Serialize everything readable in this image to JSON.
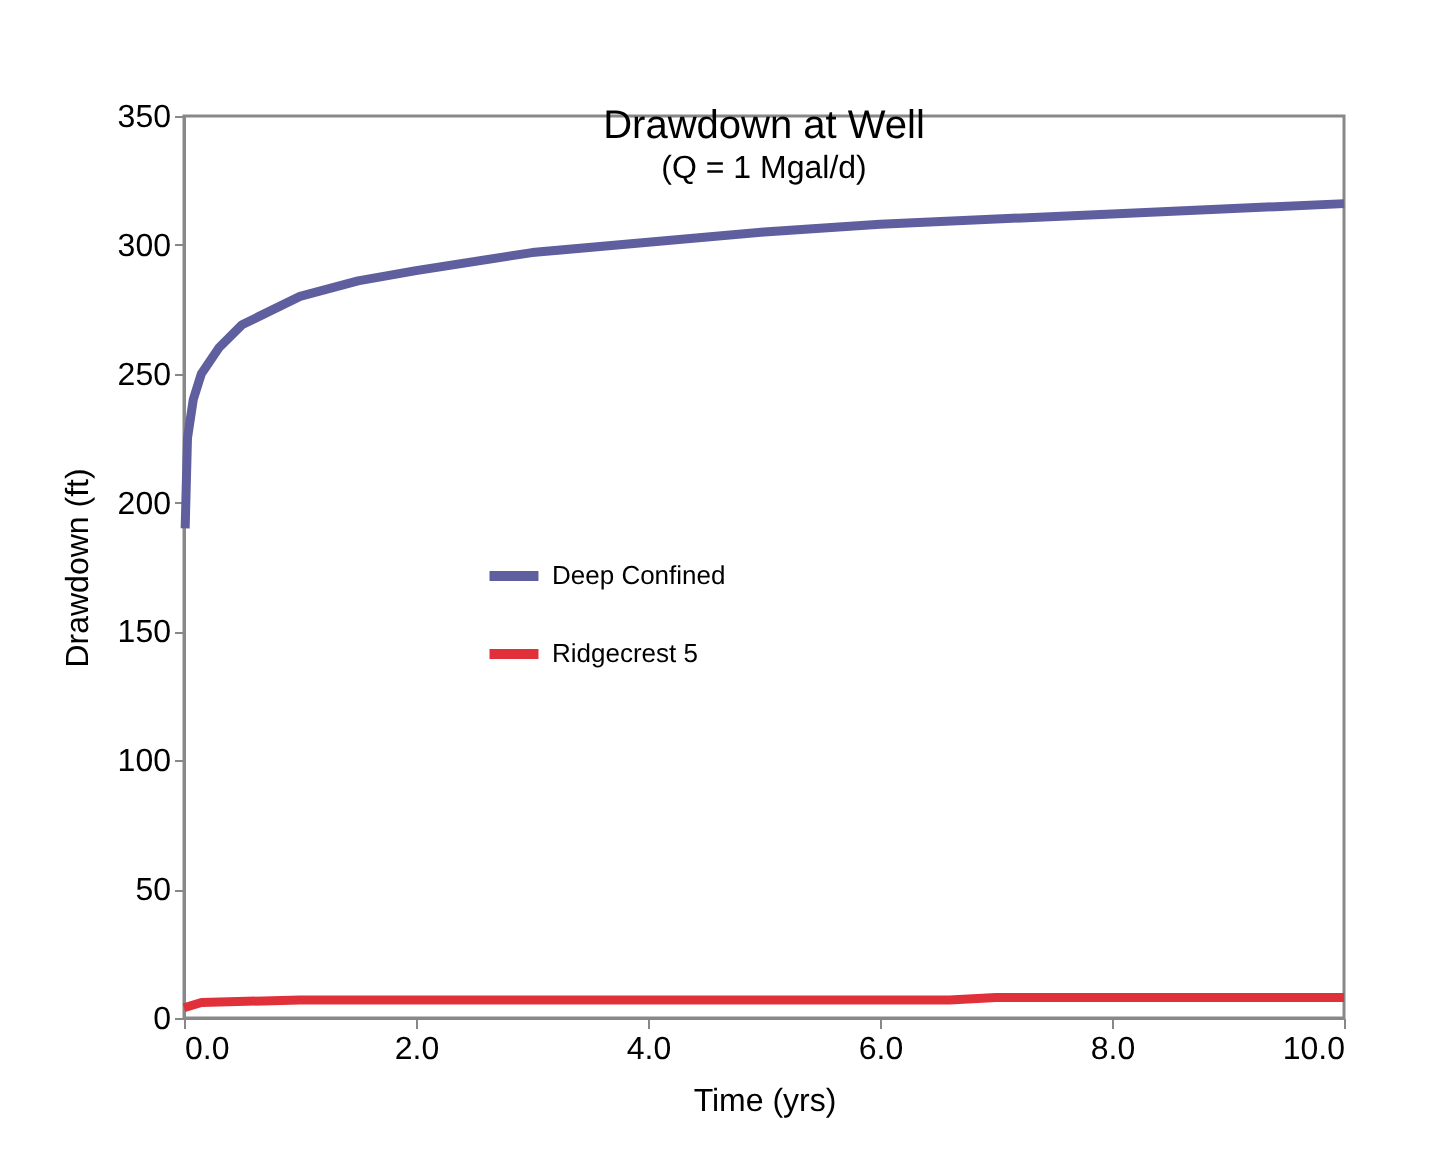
{
  "chart_data": {
    "type": "line",
    "title": "Drawdown at Well",
    "subtitle": "(Q = 1 Mgal/d)",
    "xlabel": "Time (yrs)",
    "ylabel": "Drawdown (ft)",
    "series": [
      {
        "name": "Deep Confined",
        "color": "#5f5f9f",
        "x": [
          0.01,
          0.03,
          0.08,
          0.15,
          0.3,
          0.5,
          1,
          1.5,
          2,
          3,
          4,
          5,
          6,
          7,
          8,
          9,
          10
        ],
        "values": [
          190,
          225,
          240,
          250,
          260,
          269,
          280,
          286,
          290,
          297,
          301,
          305,
          308,
          310,
          312,
          314,
          316
        ]
      },
      {
        "name": "Ridgecrest 5",
        "color": "#e0303a",
        "x": [
          0,
          0.15,
          1,
          6.6,
          7,
          10
        ],
        "values": [
          4,
          6,
          7,
          7,
          8,
          8
        ]
      }
    ],
    "xlim": [
      0,
      10
    ],
    "xticks": [
      {
        "value": 0,
        "label": "0.0"
      },
      {
        "value": 2,
        "label": "2.0"
      },
      {
        "value": 4,
        "label": "4.0"
      },
      {
        "value": 6,
        "label": "6.0"
      },
      {
        "value": 8,
        "label": "8.0"
      },
      {
        "value": 10,
        "label": "10.0"
      }
    ],
    "ylim": [
      0,
      350
    ],
    "yticks": [
      0,
      50,
      100,
      150,
      200,
      250,
      300,
      350
    ],
    "grid": false,
    "legend": "center",
    "marker": "none",
    "line_style": "solid"
  }
}
